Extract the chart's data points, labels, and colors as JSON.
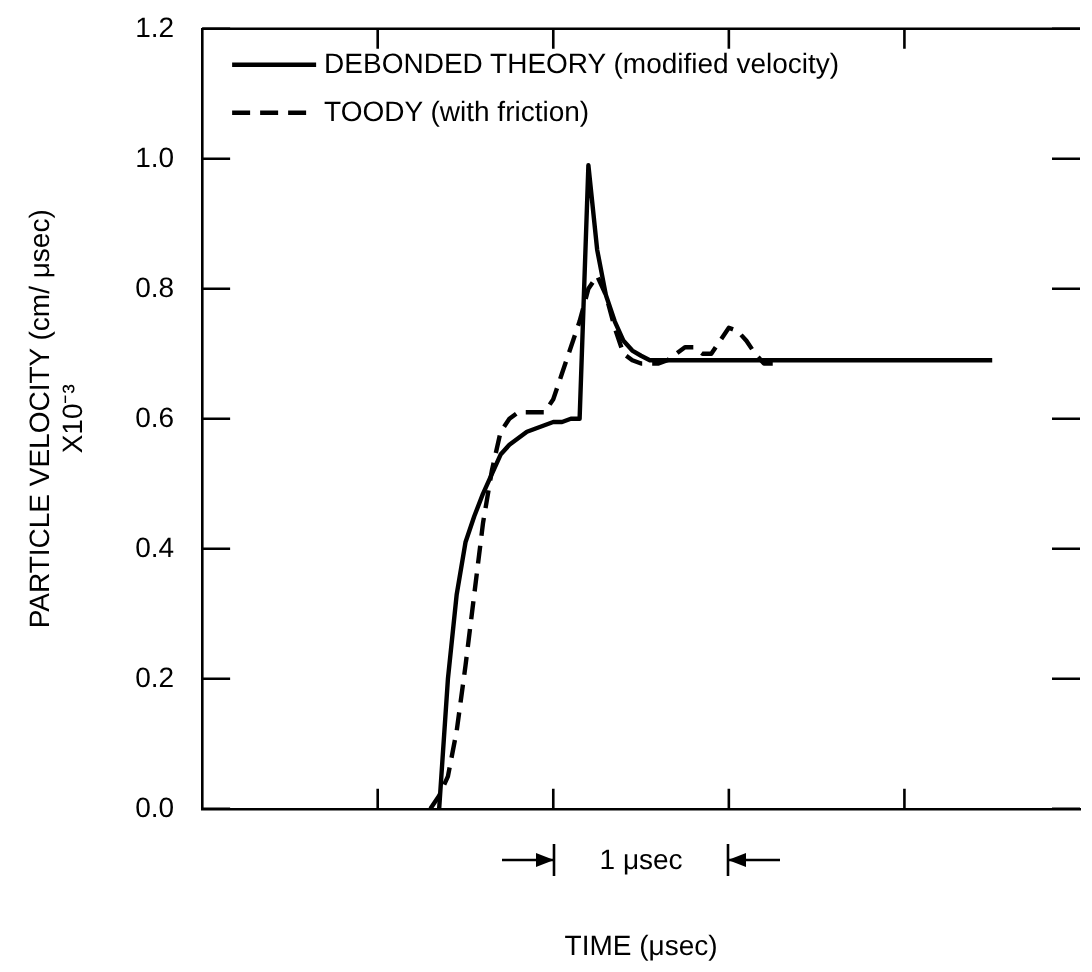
{
  "chart_data": {
    "type": "line",
    "xlabel": "TIME (μsec)",
    "ylabel": "PARTICLE VELOCITY (cm/ μsec)\nX10⁻³",
    "annotations": [
      "1 μsec"
    ],
    "categories": [
      null,
      null,
      null,
      null,
      null,
      null,
      null,
      null,
      null,
      null,
      null,
      null,
      null,
      null,
      null,
      null,
      null,
      null,
      null,
      null,
      null,
      null,
      null,
      null,
      null,
      null,
      null,
      null,
      null,
      null,
      null,
      null,
      null,
      null,
      null,
      null,
      null,
      null,
      null,
      null,
      null,
      null,
      null,
      null,
      null,
      null,
      null,
      null,
      null,
      null,
      null,
      null,
      null,
      null,
      null,
      null,
      null,
      null,
      null,
      null,
      null,
      null,
      null,
      null,
      null,
      null,
      null,
      null,
      null,
      null,
      null,
      null,
      null,
      null,
      null,
      null,
      null,
      null,
      null,
      null,
      null,
      null,
      null,
      null,
      null,
      null,
      null,
      null,
      null,
      null,
      null,
      null,
      null,
      null,
      null,
      null,
      null,
      null,
      null,
      null,
      null
    ],
    "ylim": [
      0,
      1.2
    ],
    "yticks": [
      {
        "value": 0,
        "label": "0.0"
      },
      {
        "value": 0.2,
        "label": "0.2"
      },
      {
        "value": 0.4,
        "label": "0.4"
      },
      {
        "value": 0.6,
        "label": "0.6"
      },
      {
        "value": 0.8,
        "label": "0.8"
      },
      {
        "value": 1,
        "label": "1.0"
      },
      {
        "value": 1.2,
        "label": "1.2"
      }
    ],
    "legend": "top left",
    "marker": "none",
    "series": [
      {
        "name": "DEBONDED THEORY (modified velocity)",
        "color": "#000000",
        "line_style": "solid",
        "values": [
          null,
          null,
          null,
          null,
          null,
          null,
          null,
          null,
          null,
          null,
          null,
          null,
          null,
          null,
          null,
          null,
          null,
          null,
          null,
          null,
          null,
          null,
          null,
          null,
          null,
          null,
          null,
          0,
          0.2,
          0.33,
          0.41,
          0.45,
          0.485,
          0.515,
          0.545,
          0.56,
          0.57,
          0.58,
          0.585,
          0.59,
          0.595,
          0.595,
          0.6,
          0.6,
          0.99,
          0.86,
          0.79,
          0.75,
          0.72,
          0.705,
          0.697,
          0.69,
          0.69,
          0.69,
          0.69,
          0.69,
          0.69,
          0.69,
          0.69,
          0.69,
          0.69,
          0.69,
          0.69,
          0.69,
          0.69,
          0.69,
          0.69,
          0.69,
          0.69,
          0.69,
          0.69,
          0.69,
          0.69,
          0.69,
          0.69,
          0.69,
          0.69,
          0.69,
          0.69,
          0.69,
          0.69,
          0.69,
          0.69,
          0.69,
          0.69,
          0.69,
          0.69,
          0.69,
          0.69,
          0.69,
          0.69,
          null,
          null,
          null,
          null,
          null,
          null,
          null,
          null,
          null,
          null
        ]
      },
      {
        "name": "TOODY (with friction)",
        "color": "#000000",
        "line_style": "dashed",
        "values": [
          null,
          null,
          null,
          null,
          null,
          null,
          null,
          null,
          null,
          null,
          null,
          null,
          null,
          null,
          null,
          null,
          null,
          null,
          null,
          null,
          null,
          null,
          null,
          null,
          null,
          null,
          0,
          0.02,
          0.05,
          0.12,
          0.22,
          0.33,
          0.44,
          0.52,
          0.58,
          0.6,
          0.61,
          0.61,
          0.61,
          0.61,
          0.63,
          0.67,
          0.71,
          0.75,
          0.8,
          0.82,
          0.79,
          0.74,
          0.7,
          0.69,
          0.685,
          0.685,
          0.685,
          0.69,
          0.7,
          0.71,
          0.71,
          0.7,
          0.7,
          0.72,
          0.74,
          0.735,
          0.72,
          0.7,
          0.685,
          0.685,
          null,
          null,
          null,
          null,
          null,
          null,
          null,
          null,
          null,
          null,
          null,
          null,
          null,
          null,
          null,
          null,
          null,
          null,
          null,
          null,
          null,
          null,
          null,
          null,
          null,
          null,
          null,
          null,
          null,
          null,
          null,
          null,
          null,
          null,
          null
        ]
      }
    ]
  }
}
